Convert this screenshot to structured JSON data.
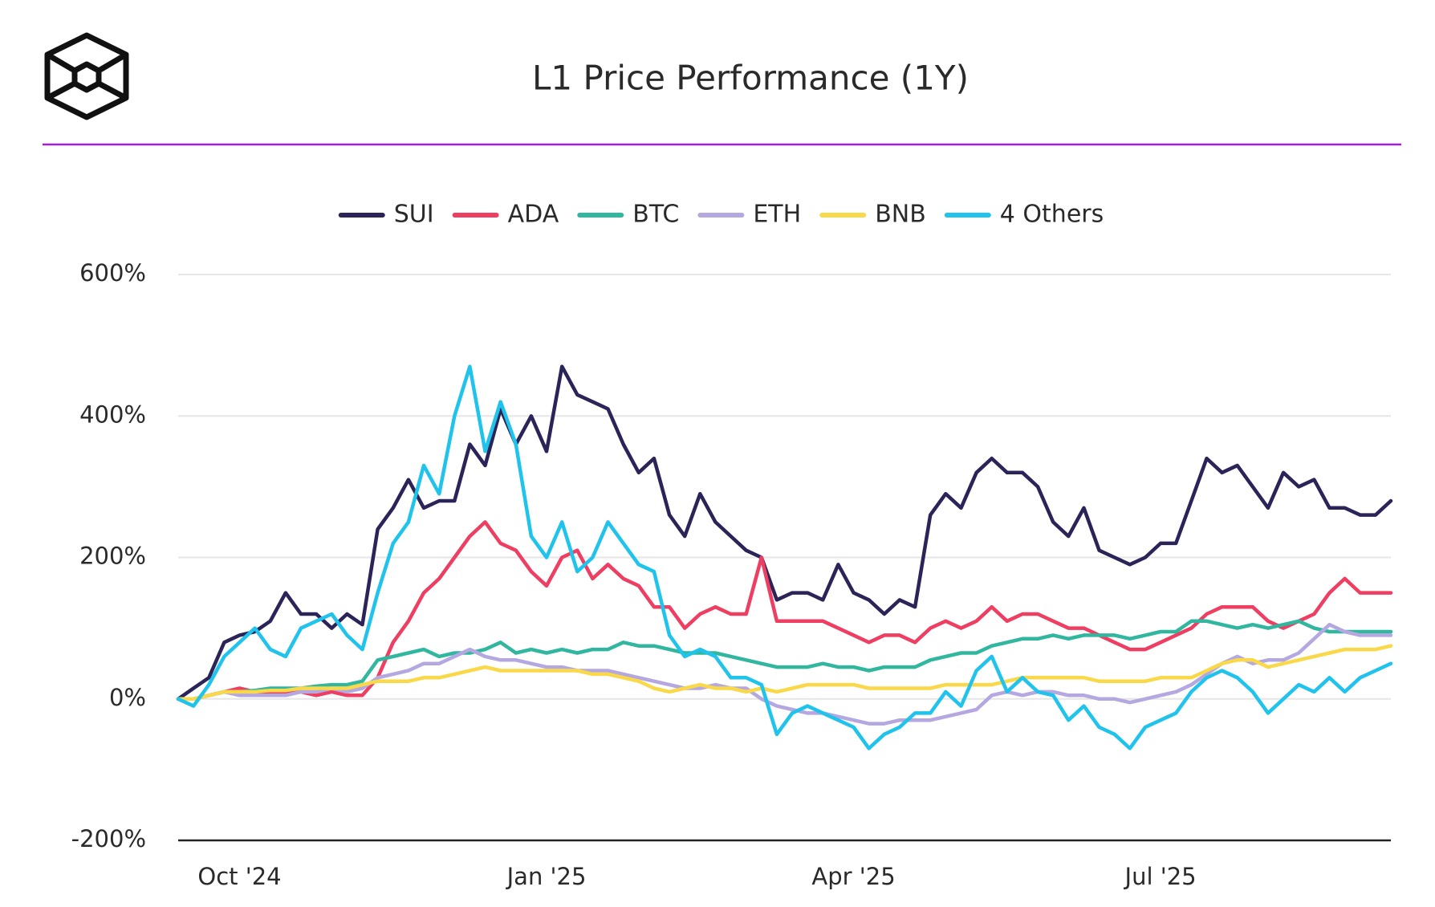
{
  "chart_data": {
    "type": "line",
    "title": "L1 Price Performance (1Y)",
    "categories": [
      null,
      null,
      null,
      null,
      "Oct '24",
      null,
      null,
      null,
      null,
      null,
      null,
      null,
      null,
      null,
      null,
      null,
      null,
      null,
      null,
      null,
      null,
      null,
      null,
      null,
      "Jan '25",
      null,
      null,
      null,
      null,
      null,
      null,
      null,
      null,
      null,
      null,
      null,
      null,
      null,
      null,
      null,
      null,
      null,
      null,
      null,
      "Apr '25",
      null,
      null,
      null,
      null,
      null,
      null,
      null,
      null,
      null,
      null,
      null,
      null,
      null,
      null,
      null,
      null,
      null,
      null,
      null,
      "Jul '25",
      null,
      null,
      null,
      null,
      null,
      null,
      null,
      null,
      null,
      null,
      null,
      null,
      null,
      null,
      null
    ],
    "ylim": [
      -200,
      600
    ],
    "yticks": [
      {
        "value": -200,
        "label": "-200%"
      },
      {
        "value": 0,
        "label": "0%"
      },
      {
        "value": 200,
        "label": "200%"
      },
      {
        "value": 400,
        "label": "400%"
      },
      {
        "value": 600,
        "label": "600%"
      }
    ],
    "grid": true,
    "legend": "top",
    "series": [
      {
        "name": "SUI",
        "color": "#2b2458",
        "values": [
          0,
          15,
          30,
          80,
          90,
          95,
          110,
          150,
          120,
          120,
          100,
          120,
          105,
          240,
          270,
          310,
          270,
          280,
          280,
          360,
          330,
          410,
          360,
          400,
          350,
          470,
          430,
          420,
          410,
          360,
          320,
          340,
          260,
          230,
          290,
          250,
          230,
          210,
          200,
          140,
          150,
          150,
          140,
          190,
          150,
          140,
          120,
          140,
          130,
          260,
          290,
          270,
          320,
          340,
          320,
          320,
          300,
          250,
          230,
          270,
          210,
          200,
          190,
          200,
          220,
          220,
          280,
          340,
          320,
          330,
          300,
          270,
          320,
          300,
          310,
          270,
          270,
          260,
          260,
          280
        ]
      },
      {
        "name": "ADA",
        "color": "#ee3e62",
        "values": [
          0,
          0,
          5,
          10,
          15,
          10,
          10,
          10,
          10,
          5,
          10,
          5,
          5,
          30,
          80,
          110,
          150,
          170,
          200,
          230,
          250,
          220,
          210,
          180,
          160,
          200,
          210,
          170,
          190,
          170,
          160,
          130,
          130,
          100,
          120,
          130,
          120,
          120,
          200,
          110,
          110,
          110,
          110,
          100,
          90,
          80,
          90,
          90,
          80,
          100,
          110,
          100,
          110,
          130,
          110,
          120,
          120,
          110,
          100,
          100,
          90,
          80,
          70,
          70,
          80,
          90,
          100,
          120,
          130,
          130,
          130,
          110,
          100,
          110,
          120,
          150,
          170,
          150,
          150,
          150
        ]
      },
      {
        "name": "BTC",
        "color": "#31b79f",
        "values": [
          0,
          0,
          5,
          10,
          10,
          12,
          15,
          15,
          15,
          18,
          20,
          20,
          25,
          55,
          60,
          65,
          70,
          60,
          65,
          65,
          70,
          80,
          65,
          70,
          65,
          70,
          65,
          70,
          70,
          80,
          75,
          75,
          70,
          65,
          65,
          65,
          60,
          55,
          50,
          45,
          45,
          45,
          50,
          45,
          45,
          40,
          45,
          45,
          45,
          55,
          60,
          65,
          65,
          75,
          80,
          85,
          85,
          90,
          85,
          90,
          90,
          90,
          85,
          90,
          95,
          95,
          110,
          110,
          105,
          100,
          105,
          100,
          105,
          110,
          100,
          95,
          95,
          95,
          95,
          95
        ]
      },
      {
        "name": "ETH",
        "color": "#b5a8e0",
        "values": [
          0,
          0,
          5,
          10,
          5,
          5,
          5,
          5,
          10,
          10,
          15,
          10,
          15,
          30,
          35,
          40,
          50,
          50,
          60,
          70,
          60,
          55,
          55,
          50,
          45,
          45,
          40,
          40,
          40,
          35,
          30,
          25,
          20,
          15,
          15,
          20,
          15,
          15,
          0,
          -10,
          -15,
          -20,
          -20,
          -25,
          -30,
          -35,
          -35,
          -30,
          -30,
          -30,
          -25,
          -20,
          -15,
          5,
          10,
          5,
          10,
          10,
          5,
          5,
          0,
          0,
          -5,
          0,
          5,
          10,
          20,
          35,
          50,
          60,
          50,
          55,
          55,
          65,
          85,
          105,
          95,
          90,
          90,
          90
        ]
      },
      {
        "name": "BNB",
        "color": "#f9d94a",
        "values": [
          0,
          0,
          5,
          10,
          10,
          10,
          12,
          12,
          15,
          15,
          15,
          15,
          20,
          25,
          25,
          25,
          30,
          30,
          35,
          40,
          45,
          40,
          40,
          40,
          40,
          40,
          40,
          35,
          35,
          30,
          25,
          15,
          10,
          15,
          20,
          15,
          15,
          10,
          15,
          10,
          15,
          20,
          20,
          20,
          20,
          15,
          15,
          15,
          15,
          15,
          20,
          20,
          20,
          20,
          25,
          30,
          30,
          30,
          30,
          30,
          25,
          25,
          25,
          25,
          30,
          30,
          30,
          40,
          50,
          55,
          55,
          45,
          50,
          55,
          60,
          65,
          70,
          70,
          70,
          75
        ]
      },
      {
        "name": "4 Others",
        "color": "#1fc3ec",
        "values": [
          0,
          -10,
          20,
          60,
          80,
          100,
          70,
          60,
          100,
          110,
          120,
          90,
          70,
          150,
          220,
          250,
          330,
          290,
          400,
          470,
          350,
          420,
          360,
          230,
          200,
          250,
          180,
          200,
          250,
          220,
          190,
          180,
          90,
          60,
          70,
          60,
          30,
          30,
          20,
          -50,
          -20,
          -10,
          -20,
          -30,
          -40,
          -70,
          -50,
          -40,
          -20,
          -20,
          10,
          -10,
          40,
          60,
          10,
          30,
          10,
          5,
          -30,
          -10,
          -40,
          -50,
          -70,
          -40,
          -30,
          -20,
          10,
          30,
          40,
          30,
          10,
          -20,
          0,
          20,
          10,
          30,
          10,
          30,
          40,
          50
        ]
      }
    ]
  }
}
